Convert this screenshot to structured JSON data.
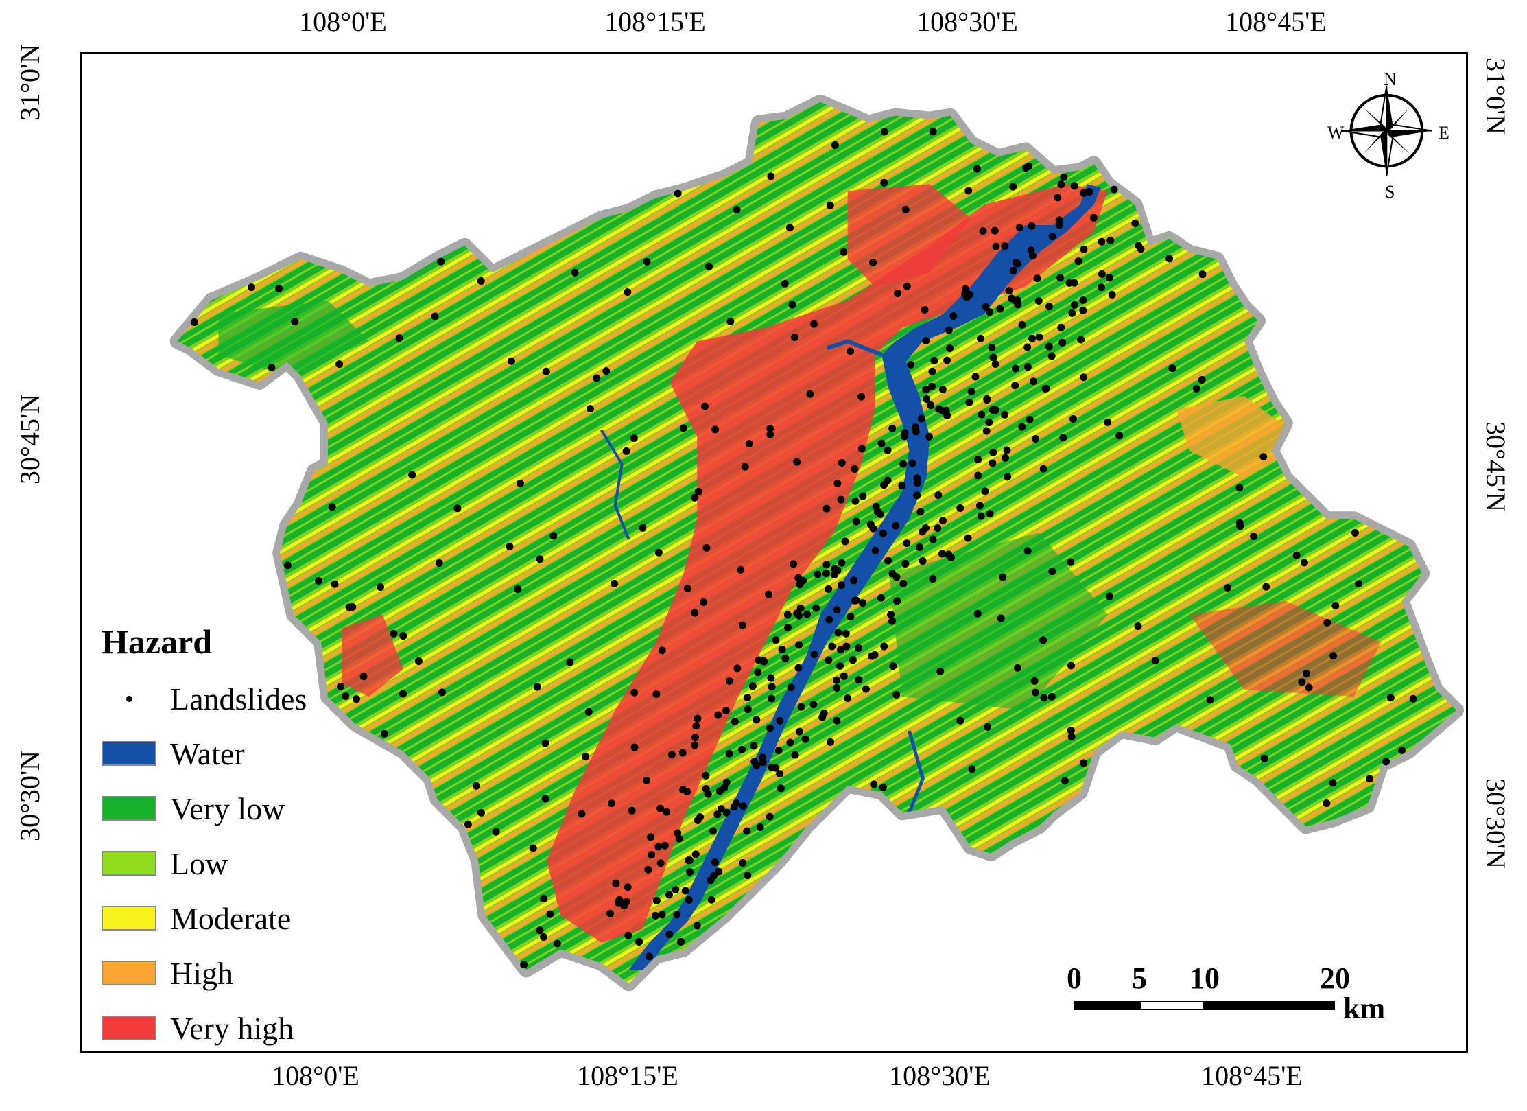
{
  "map": {
    "axes": {
      "top_longitudes": [
        "108°0'E",
        "108°15'E",
        "108°30'E",
        "108°45'E"
      ],
      "bottom_longitudes": [
        "108°0'E",
        "108°15'E",
        "108°30'E",
        "108°45'E"
      ],
      "left_latitudes": [
        "31°0'N",
        "30°45'N",
        "30°30'N"
      ],
      "right_latitudes": [
        "31°0'N",
        "30°45'N",
        "30°30'N"
      ]
    },
    "legend": {
      "title": "Hazard",
      "point_label": "Landslides",
      "classes": [
        {
          "label": "Water",
          "color": "#1550a8"
        },
        {
          "label": "Very low",
          "color": "#17b22a"
        },
        {
          "label": "Low",
          "color": "#8fdc1c"
        },
        {
          "label": "Moderate",
          "color": "#f7f21c"
        },
        {
          "label": "High",
          "color": "#f9a530"
        },
        {
          "label": "Very high",
          "color": "#f23b3b"
        }
      ]
    },
    "scale_bar": {
      "ticks": [
        "0",
        "5",
        "10",
        "20"
      ],
      "unit": "km"
    },
    "compass": {
      "n": "N",
      "s": "S",
      "e": "E",
      "w": "W"
    }
  }
}
